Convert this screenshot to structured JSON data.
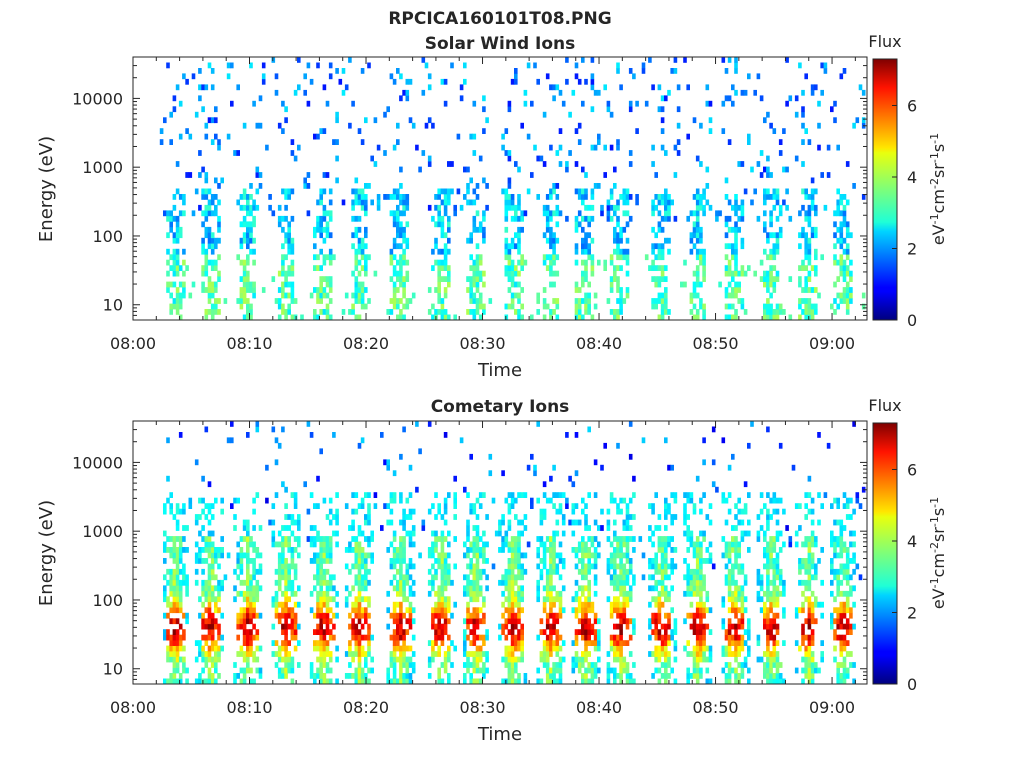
{
  "figure": {
    "title": "RPCICA160101T08.PNG"
  },
  "chart_data": [
    {
      "type": "heatmap",
      "title": "Solar Wind Ions",
      "xlabel": "Time",
      "ylabel": "Energy (eV)",
      "x_ticks": [
        "08:00",
        "08:10",
        "08:20",
        "08:30",
        "08:40",
        "08:50",
        "09:00"
      ],
      "xlim": [
        "08:00",
        "09:03"
      ],
      "y_scale": "log",
      "y_ticks": [
        "10",
        "100",
        "1000",
        "10000"
      ],
      "ylim": [
        6,
        40000
      ],
      "colorbar": {
        "title": "Flux",
        "label": "eV-1cm-2sr-1s-1",
        "ticks": [
          "0",
          "2",
          "4",
          "6"
        ],
        "range": [
          0,
          7.3
        ],
        "colormap": "jet"
      },
      "profile": "solar_wind",
      "pulse_times_min": [
        3.5,
        6.5,
        9.7,
        13.0,
        16.2,
        19.3,
        22.8,
        26.3,
        29.3,
        32.5,
        35.7,
        38.7,
        41.7,
        45.2,
        48.3,
        51.5,
        54.7,
        57.8,
        60.8
      ]
    },
    {
      "type": "heatmap",
      "title": "Cometary Ions",
      "xlabel": "Time",
      "ylabel": "Energy (eV)",
      "x_ticks": [
        "08:00",
        "08:10",
        "08:20",
        "08:30",
        "08:40",
        "08:50",
        "09:00"
      ],
      "xlim": [
        "08:00",
        "09:03"
      ],
      "y_scale": "log",
      "y_ticks": [
        "10",
        "100",
        "1000",
        "10000"
      ],
      "ylim": [
        6,
        40000
      ],
      "colorbar": {
        "title": "Flux",
        "label": "eV-1cm-2sr-1s-1",
        "ticks": [
          "0",
          "2",
          "4",
          "6"
        ],
        "range": [
          0,
          7.3
        ],
        "colormap": "jet"
      },
      "profile": "cometary",
      "pulse_times_min": [
        3.5,
        6.5,
        9.7,
        13.0,
        16.2,
        19.3,
        22.8,
        26.3,
        29.3,
        32.5,
        35.7,
        38.7,
        41.7,
        45.2,
        48.3,
        51.5,
        54.7,
        57.8,
        60.8
      ]
    }
  ]
}
